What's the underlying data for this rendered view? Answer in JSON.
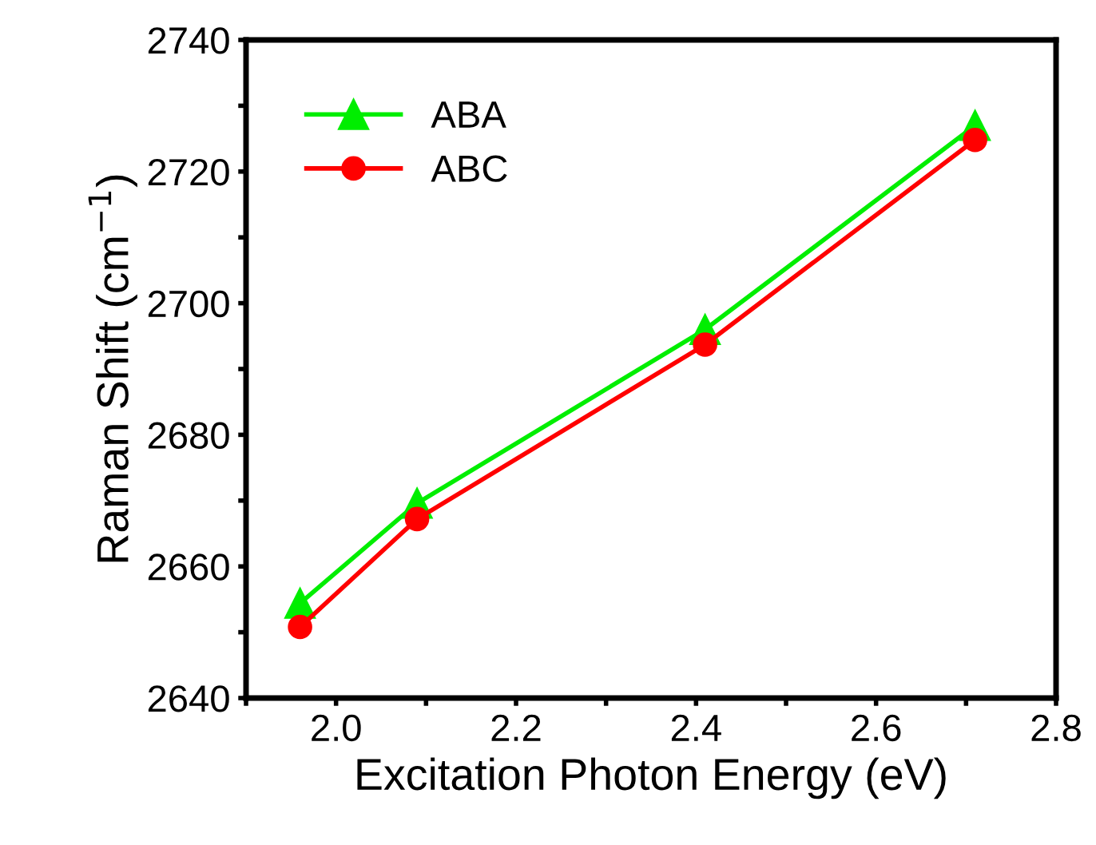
{
  "chart_data": {
    "type": "line",
    "xlabel": "Excitation Photon Energy (eV)",
    "ylabel": "Raman Shift (cm$^{−1}$)",
    "x": [
      1.96,
      2.09,
      2.41,
      2.71
    ],
    "series": [
      {
        "name": "ABA",
        "color": "#00ee00",
        "marker": "triangle",
        "values": [
          2654.4,
          2669.6,
          2696,
          2727
        ]
      },
      {
        "name": "ABC",
        "color": "#ff0000",
        "marker": "circle",
        "values": [
          2650.8,
          2667.2,
          2693.7,
          2724.8
        ]
      }
    ],
    "xlim": [
      1.9,
      2.8
    ],
    "xticks": [
      {
        "value": 1.9,
        "label": null
      },
      {
        "value": 2.0,
        "label": "2.0"
      },
      {
        "value": 2.1,
        "label": null
      },
      2.2,
      {
        "value": 2.3,
        "label": null
      },
      2.4,
      {
        "value": 2.5,
        "label": null
      },
      2.6,
      {
        "value": 2.7,
        "label": null
      },
      2.8
    ],
    "ylim": [
      2640,
      2740
    ],
    "yticks": [
      2640,
      {
        "value": 2650,
        "label": null
      },
      2660,
      {
        "value": 2670,
        "label": null
      },
      2680,
      {
        "value": 2690,
        "label": null
      },
      2700,
      {
        "value": 2710,
        "label": null
      },
      2720,
      {
        "value": 2730,
        "label": null
      },
      2740
    ],
    "legend": "top left",
    "grid": false,
    "line_style": "solid"
  }
}
